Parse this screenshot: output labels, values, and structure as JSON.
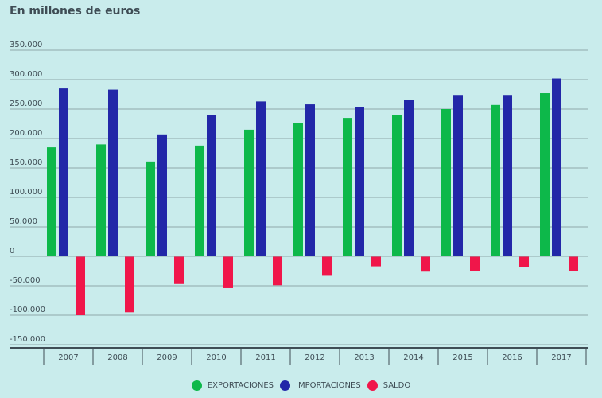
{
  "chart_data": {
    "type": "bar",
    "title": "En millones de euros",
    "xlabel": "",
    "ylabel": "",
    "ylim": [
      -150000,
      350000
    ],
    "yticks": [
      350000,
      300000,
      250000,
      200000,
      150000,
      100000,
      50000,
      0,
      -50000,
      -100000,
      -150000
    ],
    "ytick_labels": [
      "350.000",
      "300.000",
      "250.000",
      "200.000",
      "150.000",
      "100.000",
      "50.000",
      "0",
      "-50.000",
      "-100.000",
      "-150.000"
    ],
    "grid": true,
    "legend_position": "bottom-center",
    "categories": [
      "2007",
      "2008",
      "2009",
      "2010",
      "2011",
      "2012",
      "2013",
      "2014",
      "2015",
      "2016",
      "2017"
    ],
    "series": [
      {
        "name": "EXPORTACIONES",
        "color": "#0db84a",
        "values": [
          185000,
          190000,
          161000,
          188000,
          215000,
          227000,
          235000,
          240000,
          250000,
          257000,
          277000
        ]
      },
      {
        "name": "IMPORTACIONES",
        "color": "#2227a8",
        "values": [
          285000,
          283000,
          207000,
          240000,
          263000,
          258000,
          253000,
          266000,
          274000,
          274000,
          302000
        ]
      },
      {
        "name": "SALDO",
        "color": "#f0164a",
        "values": [
          -100000,
          -95000,
          -47000,
          -54000,
          -49000,
          -33000,
          -17000,
          -26000,
          -25000,
          -18000,
          -25000
        ]
      }
    ]
  }
}
